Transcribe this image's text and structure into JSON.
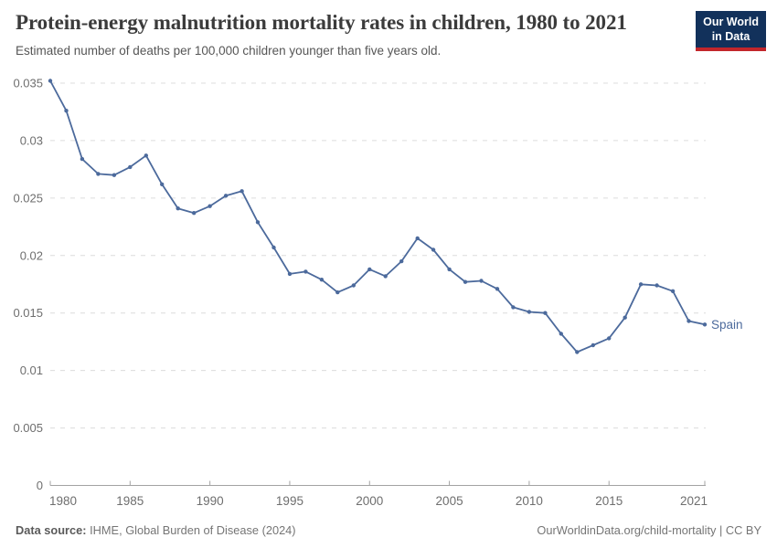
{
  "chart_data": {
    "type": "line",
    "title": "Protein-energy malnutrition mortality rates in children, 1980 to 2021",
    "subtitle": "Estimated number of deaths per 100,000 children younger than five years old.",
    "x": [
      1980,
      1981,
      1982,
      1983,
      1984,
      1985,
      1986,
      1987,
      1988,
      1989,
      1990,
      1991,
      1992,
      1993,
      1994,
      1995,
      1996,
      1997,
      1998,
      1999,
      2000,
      2001,
      2002,
      2003,
      2004,
      2005,
      2006,
      2007,
      2008,
      2009,
      2010,
      2011,
      2012,
      2013,
      2014,
      2015,
      2016,
      2017,
      2018,
      2019,
      2020,
      2021
    ],
    "series": [
      {
        "name": "Spain",
        "color": "#4c6a9c",
        "values": [
          0.0352,
          0.0326,
          0.0284,
          0.0271,
          0.027,
          0.0277,
          0.0287,
          0.0262,
          0.0241,
          0.0237,
          0.0243,
          0.0252,
          0.0256,
          0.0229,
          0.0207,
          0.0184,
          0.0186,
          0.0179,
          0.0168,
          0.0174,
          0.0188,
          0.0182,
          0.0195,
          0.0215,
          0.0205,
          0.0188,
          0.0177,
          0.0178,
          0.0171,
          0.0155,
          0.0151,
          0.015,
          0.0132,
          0.0116,
          0.0122,
          0.0128,
          0.0146,
          0.0175,
          0.0174,
          0.0169,
          0.0143,
          0.014
        ]
      }
    ],
    "x_tick_years": [
      1980,
      1985,
      1990,
      1995,
      2000,
      2005,
      2010,
      2015,
      2021
    ],
    "x_tick_labels": [
      "1980",
      "1985",
      "1990",
      "1995",
      "2000",
      "2005",
      "2010",
      "2015",
      "2021"
    ],
    "y_ticks": [
      0,
      0.005,
      0.01,
      0.015,
      0.02,
      0.025,
      0.03,
      0.035
    ],
    "y_tick_labels": [
      "0",
      "0.005",
      "0.01",
      "0.015",
      "0.02",
      "0.025",
      "0.03",
      "0.035"
    ],
    "xlim": [
      1980,
      2021
    ],
    "ylim": [
      0,
      0.0355
    ],
    "grid": "horizontal-dashed",
    "legend_position": "end-of-line-label",
    "end_label": "Spain"
  },
  "logo": {
    "line1": "Our World",
    "line2": "in Data"
  },
  "footer": {
    "source_label": "Data source:",
    "source_text": " IHME, Global Burden of Disease (2024)",
    "credit": "OurWorldinData.org/child-mortality | CC BY"
  },
  "colors": {
    "line": "#4c6a9c",
    "entity_label": "#4c6a9c",
    "grid": "#dcdcdc",
    "axis": "#a3a3a3",
    "tick_text": "#6e6e6e",
    "logo_bg": "#12315b",
    "logo_accent": "#c2262b"
  }
}
